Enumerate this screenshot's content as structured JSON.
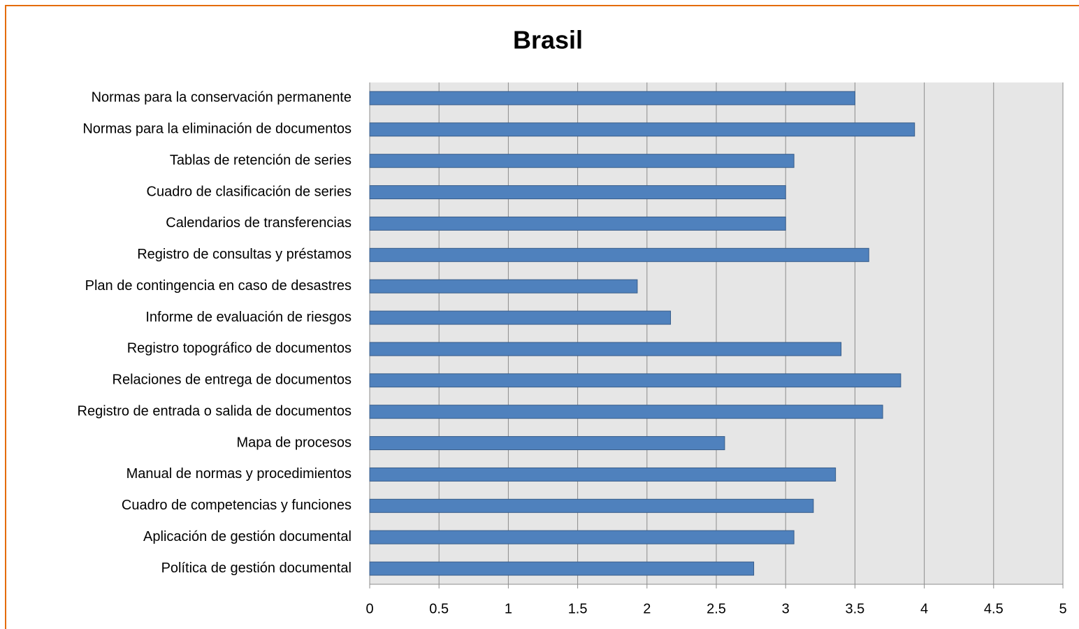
{
  "chart_data": {
    "type": "bar",
    "orientation": "horizontal",
    "title": "Brasil",
    "categories": [
      "Normas para la conservación permanente",
      "Normas para la eliminación de documentos",
      "Tablas de retención de series",
      "Cuadro de clasificación de series",
      "Calendarios de transferencias",
      "Registro de consultas y préstamos",
      "Plan de contingencia en caso de desastres",
      "Informe de evaluación de riesgos",
      "Registro topográfico de documentos",
      "Relaciones de entrega de documentos",
      "Registro de entrada o salida de documentos",
      "Mapa de procesos",
      "Manual de normas y procedimientos",
      "Cuadro de competencias y funciones",
      "Aplicación de gestión documental",
      "Política de gestión documental"
    ],
    "values": [
      3.5,
      3.93,
      3.06,
      3.0,
      3.0,
      3.6,
      1.93,
      2.17,
      3.4,
      3.83,
      3.7,
      2.56,
      3.36,
      3.2,
      3.06,
      2.77
    ],
    "color": "#4f81bd",
    "xlim": [
      0,
      5
    ],
    "xticks": [
      0,
      0.5,
      1,
      1.5,
      2,
      2.5,
      3,
      3.5,
      4,
      4.5,
      5
    ],
    "grid": true
  }
}
